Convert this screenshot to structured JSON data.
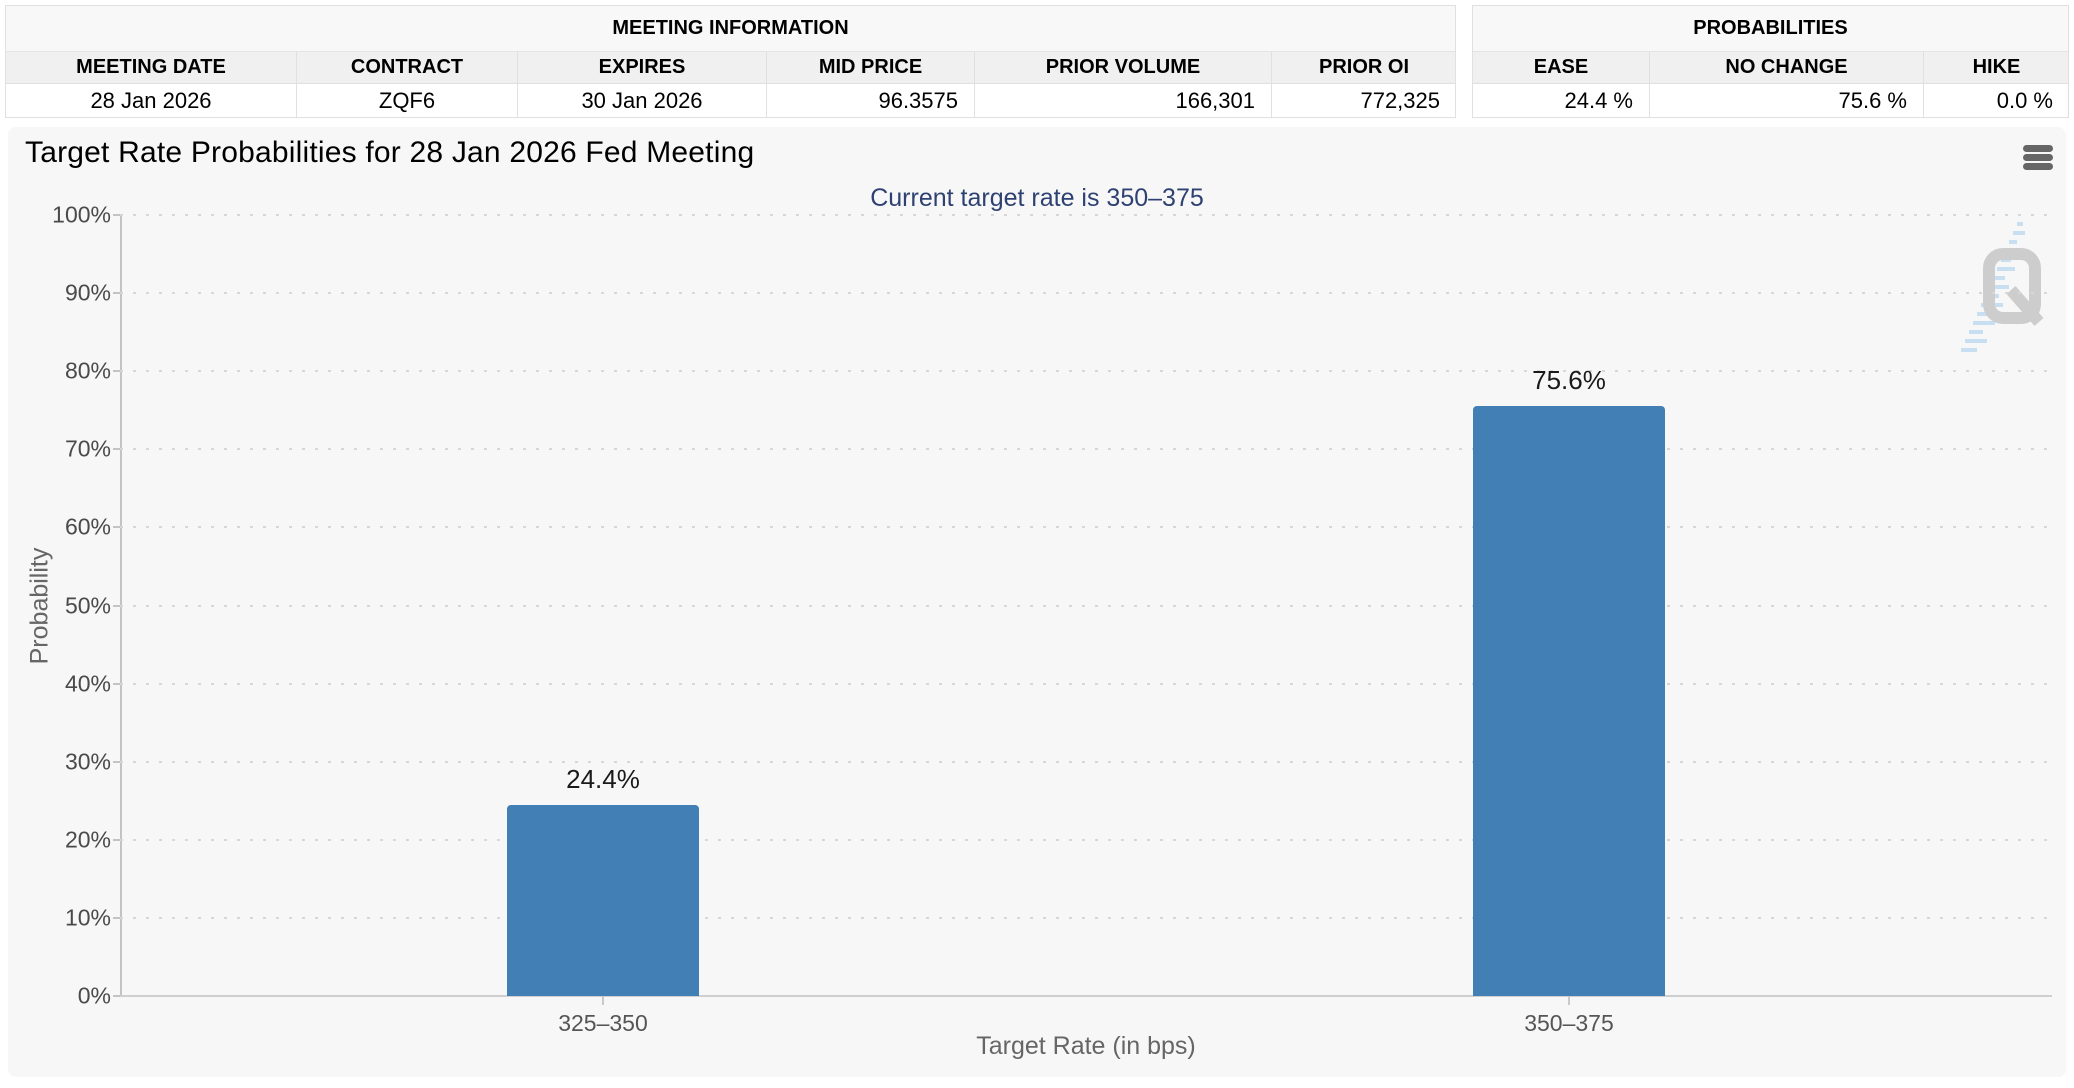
{
  "meeting_information": {
    "title": "MEETING INFORMATION",
    "columns": [
      "MEETING DATE",
      "CONTRACT",
      "EXPIRES",
      "MID PRICE",
      "PRIOR VOLUME",
      "PRIOR OI"
    ],
    "values": [
      "28 Jan 2026",
      "ZQF6",
      "30 Jan 2026",
      "96.3575",
      "166,301",
      "772,325"
    ]
  },
  "probabilities": {
    "title": "PROBABILITIES",
    "columns": [
      "EASE",
      "NO CHANGE",
      "HIKE"
    ],
    "values": [
      "24.4 %",
      "75.6 %",
      "0.0 %"
    ]
  },
  "chart": {
    "title": "Target Rate Probabilities for 28 Jan 2026 Fed Meeting",
    "subtitle": "Current target rate is 350–375",
    "menu_icon": "hamburger-icon",
    "watermark": "quikstrike-q-logo"
  },
  "chart_data": {
    "type": "bar",
    "title": "Target Rate Probabilities for 28 Jan 2026 Fed Meeting",
    "subtitle": "Current target rate is 350–375",
    "categories": [
      "325–350",
      "350–375"
    ],
    "values": [
      24.4,
      75.6
    ],
    "bar_labels": [
      "24.4%",
      "75.6%"
    ],
    "xlabel": "Target Rate (in bps)",
    "ylabel": "Probability",
    "ylim": [
      0,
      100
    ],
    "ytick_step": 10,
    "ytick_suffix": "%",
    "grid": "dotted-horizontal",
    "legend": "none",
    "bar_color": "#417fb4"
  },
  "colors": {
    "bar": "#417fb4",
    "subtitle": "#2e4172",
    "panel_bg": "#f7f7f7",
    "grid_dot": "#d7d7d7",
    "axis_line": "#c3c3c3"
  }
}
